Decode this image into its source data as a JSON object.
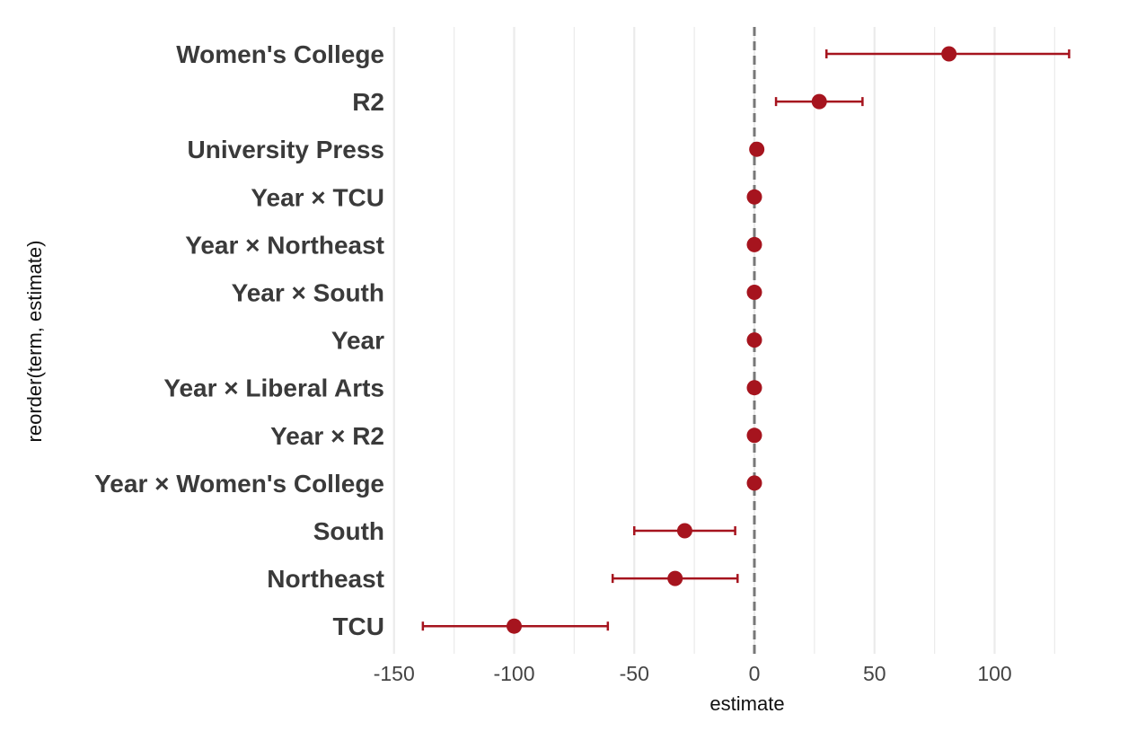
{
  "chart_data": {
    "type": "scatter",
    "xlabel": "estimate",
    "ylabel": "reorder(term, estimate)",
    "xlim": [
      -150,
      132
    ],
    "x_ticks": [
      -150,
      -100,
      -50,
      0,
      50,
      100
    ],
    "x_tick_labels": [
      "-150",
      "-100",
      "-50",
      "0",
      "50",
      "100"
    ],
    "minor_gridlines": [
      -125,
      -75,
      -25,
      25,
      75,
      125
    ],
    "reference_line": 0,
    "grid": "vertical",
    "terms": [
      {
        "term": "Women's College",
        "estimate": 81,
        "low": 30,
        "high": 131
      },
      {
        "term": "R2",
        "estimate": 27,
        "low": 9,
        "high": 45
      },
      {
        "term": "University Press",
        "estimate": 1,
        "low": 1,
        "high": 1
      },
      {
        "term": "Year × TCU",
        "estimate": 0,
        "low": 0,
        "high": 0
      },
      {
        "term": "Year × Northeast",
        "estimate": 0,
        "low": 0,
        "high": 0
      },
      {
        "term": "Year × South",
        "estimate": 0,
        "low": 0,
        "high": 0
      },
      {
        "term": "Year",
        "estimate": 0,
        "low": 0,
        "high": 0
      },
      {
        "term": "Year × Liberal Arts",
        "estimate": 0,
        "low": 0,
        "high": 0
      },
      {
        "term": "Year × R2",
        "estimate": 0,
        "low": 0,
        "high": 0
      },
      {
        "term": "Year × Women's College",
        "estimate": 0,
        "low": 0,
        "high": 0
      },
      {
        "term": "South",
        "estimate": -29,
        "low": -50,
        "high": -8
      },
      {
        "term": "Northeast",
        "estimate": -33,
        "low": -59,
        "high": -7
      },
      {
        "term": "TCU",
        "estimate": -100,
        "low": -138,
        "high": -61
      }
    ],
    "colors": {
      "point": "#a6141e",
      "errorbar": "#a6141e",
      "reference": "#777777",
      "grid": "#ebebeb"
    }
  }
}
